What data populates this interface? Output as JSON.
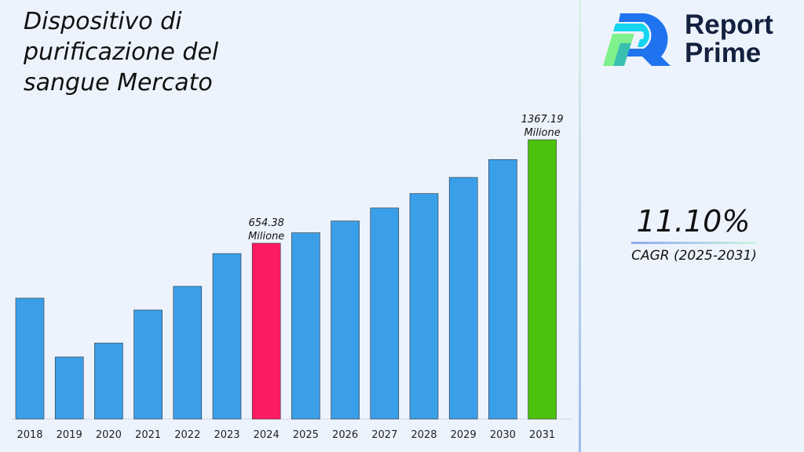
{
  "title": "Dispositivo di purificazione del sangue Mercato",
  "brand": {
    "line1": "Report",
    "line2": "Prime"
  },
  "cagr": {
    "value": "11.10%",
    "label": "CAGR (2025-2031)"
  },
  "colors": {
    "default_bar": "#3a9fe8",
    "highlight_2024": "#fc1a62",
    "highlight_2031": "#4cc20f",
    "background": "#edf3fd"
  },
  "chart_data": {
    "type": "bar",
    "title": "Dispositivo di purificazione del sangue Mercato",
    "categories": [
      "2018",
      "2019",
      "2020",
      "2021",
      "2022",
      "2023",
      "2024",
      "2025",
      "2026",
      "2027",
      "2028",
      "2029",
      "2030",
      "2031"
    ],
    "values": [
      450,
      231,
      283,
      406,
      494,
      616,
      654.38,
      727,
      808,
      898,
      997,
      1108,
      1231,
      1367.19
    ],
    "data_labels": [
      {
        "category": "2024",
        "value": "654.38",
        "unit": "Milione"
      },
      {
        "category": "2031",
        "value": "1367.19",
        "unit": "Milione"
      }
    ],
    "grid": false,
    "xlabel": "",
    "ylabel": ""
  }
}
